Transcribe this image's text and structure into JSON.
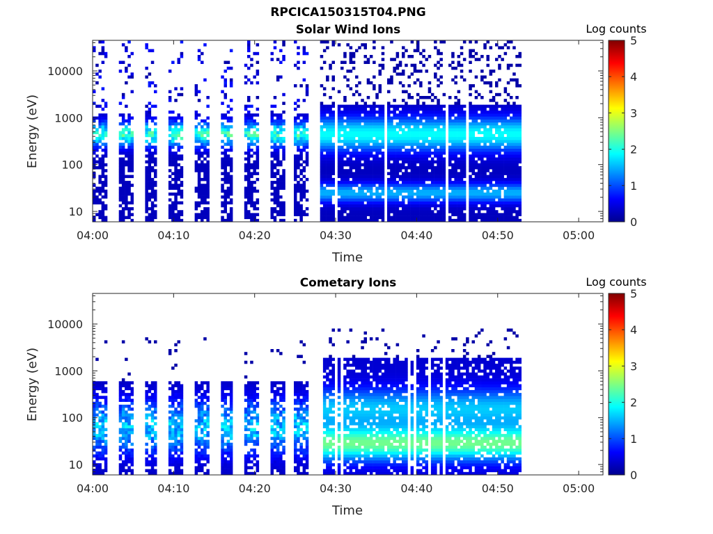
{
  "figure_title": "RPCICA150315T04.PNG",
  "chart_data": [
    {
      "type": "heatmap",
      "title": "Solar Wind Ions",
      "xlabel": "Time",
      "ylabel": "Energy (eV)",
      "y_scale": "log",
      "ylim": [
        6,
        45000
      ],
      "x_ticks": [
        "04:00",
        "04:10",
        "04:20",
        "04:30",
        "04:40",
        "04:50",
        "05:00"
      ],
      "x_range_minutes": [
        0,
        63
      ],
      "data_end_minute": 52.7,
      "y_ticks": [
        "10",
        "100",
        "1000",
        "10000"
      ],
      "colorbar": {
        "label": "Log counts",
        "range": [
          0,
          5
        ],
        "ticks": [
          "0",
          "1",
          "2",
          "3",
          "4",
          "5"
        ],
        "colormap": "jet"
      },
      "values_summary": "Time-energy spectrogram of log counts. 04:00-04:28: narrow sweeps ~every 3 min with peaks ~2-3 near 200-700 eV. 04:28-04:53: broad continuous coverage below ~2000 eV, values ~1.5-2.6 near 300-800 eV and ~1-1.5 near 20-30 eV."
    },
    {
      "type": "heatmap",
      "title": "Cometary Ions",
      "xlabel": "Time",
      "ylabel": "Energy (eV)",
      "y_scale": "log",
      "ylim": [
        6,
        45000
      ],
      "x_ticks": [
        "04:00",
        "04:10",
        "04:20",
        "04:30",
        "04:40",
        "04:50",
        "05:00"
      ],
      "x_range_minutes": [
        0,
        63
      ],
      "data_end_minute": 52.7,
      "y_ticks": [
        "10",
        "100",
        "1000",
        "10000"
      ],
      "colorbar": {
        "label": "Log counts",
        "range": [
          0,
          5
        ],
        "ticks": [
          "0",
          "1",
          "2",
          "3",
          "4",
          "5"
        ],
        "colormap": "jet"
      },
      "values_summary": "Time-energy spectrogram of log counts. Periodic sweeps with values ~1.5-2.5 between 15-300 eV; 04:28-04:53 broad coverage, peaks ~2.5-3 near 20-30 eV."
    }
  ]
}
